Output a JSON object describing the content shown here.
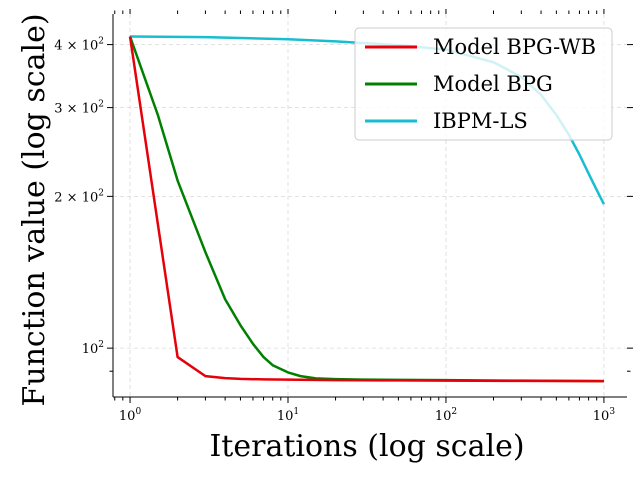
{
  "chart_data": {
    "type": "line",
    "title": "",
    "xlabel": "Iterations (log scale)",
    "ylabel": "Function value (log scale)",
    "xscale": "log",
    "yscale": "log",
    "xlim": [
      0.78,
      1400
    ],
    "ylim": [
      80,
      460
    ],
    "grid": true,
    "legend_position": "top-right",
    "x_tick_labels": [
      {
        "value": 1,
        "base": "10",
        "exp": "0"
      },
      {
        "value": 10,
        "base": "10",
        "exp": "1"
      },
      {
        "value": 100,
        "base": "10",
        "exp": "2"
      },
      {
        "value": 1000,
        "base": "10",
        "exp": "3"
      }
    ],
    "y_tick_labels": [
      {
        "value": 100,
        "prefix": "",
        "base": "10",
        "exp": "2"
      },
      {
        "value": 200,
        "prefix": "2 × ",
        "base": "10",
        "exp": "2"
      },
      {
        "value": 300,
        "prefix": "3 × ",
        "base": "10",
        "exp": "2"
      },
      {
        "value": 400,
        "prefix": "4 × ",
        "base": "10",
        "exp": "2"
      }
    ],
    "series": [
      {
        "name": "Model BPG-WB",
        "color": "#e6000a",
        "x": [
          1,
          2,
          3,
          4,
          5,
          7,
          10,
          20,
          50,
          100,
          300,
          1000
        ],
        "y": [
          415,
          96,
          88,
          87.2,
          86.9,
          86.7,
          86.6,
          86.4,
          86.3,
          86.2,
          86.1,
          86.0
        ]
      },
      {
        "name": "Model BPG",
        "color": "#008000",
        "x": [
          1,
          1.5,
          2,
          3,
          4,
          5,
          6,
          7,
          8,
          10,
          12,
          15,
          20,
          30,
          50,
          100,
          300,
          1000
        ],
        "y": [
          415,
          290,
          215,
          155,
          125,
          111,
          102,
          96,
          92.5,
          89.5,
          88,
          87.1,
          86.8,
          86.6,
          86.5,
          86.4,
          86.2,
          86.0
        ]
      },
      {
        "name": "IBPM-LS",
        "color": "#17becf",
        "x": [
          1,
          3,
          10,
          20,
          50,
          100,
          200,
          300,
          400,
          500,
          600,
          700,
          800,
          900,
          1000
        ],
        "y": [
          415,
          414,
          410,
          406,
          399,
          391,
          369,
          345,
          318,
          290,
          265,
          242,
          222,
          206,
          193
        ]
      }
    ]
  }
}
